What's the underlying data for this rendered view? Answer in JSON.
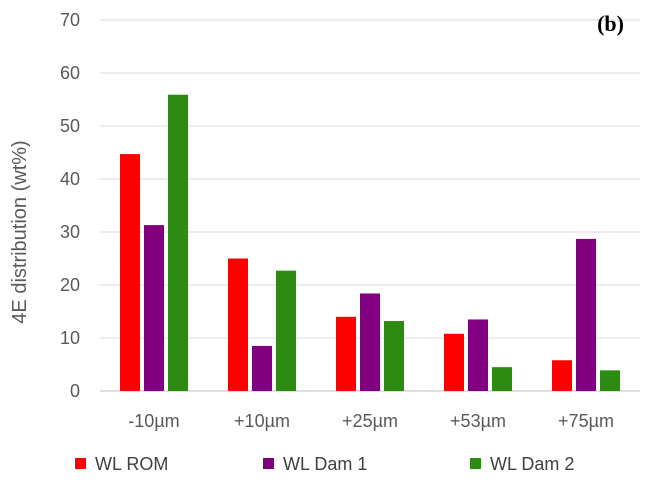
{
  "chart_data": {
    "type": "bar",
    "panel_label": "(b)",
    "ylabel": "4E distribution (wt%)",
    "xlabel": "",
    "ylim": [
      0,
      70
    ],
    "yticks": [
      0,
      10,
      20,
      30,
      40,
      50,
      60,
      70
    ],
    "grid": true,
    "legend_position": "bottom",
    "categories": [
      "-10µm",
      "+10µm",
      "+25µm",
      "+53µm",
      "+75µm"
    ],
    "series": [
      {
        "name": "WL ROM",
        "color": "#ff0000",
        "values": [
          44.7,
          25.0,
          14.0,
          10.8,
          5.8
        ]
      },
      {
        "name": "WL Dam 1",
        "color": "#800080",
        "values": [
          31.3,
          8.5,
          18.4,
          13.5,
          28.7
        ]
      },
      {
        "name": "WL Dam 2",
        "color": "#2e8b12",
        "values": [
          55.9,
          22.7,
          13.2,
          4.5,
          3.9
        ]
      }
    ]
  }
}
